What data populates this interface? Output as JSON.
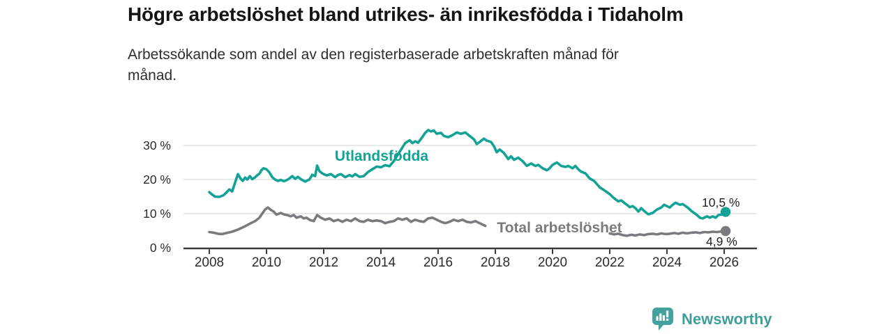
{
  "header": {
    "title": "Högre arbetslöshet bland utrikes- än inrikesfödda i Tidaholm",
    "subtitle_lines": [
      "Arbetssökande som andel av den registerbaserade arbetskraften månad för",
      "månad."
    ]
  },
  "footer": {
    "brand_name": "Newsworthy",
    "brand_color": "#3f9e9a",
    "logo_icon": "bar-chart-speech-bubble"
  },
  "chart_data": {
    "type": "line",
    "x_unit": "year (monthly series)",
    "grid": "horizontal",
    "xlim": [
      2007.1,
      2027.1
    ],
    "ylim": [
      0,
      36
    ],
    "x_ticks": {
      "values": [
        2008,
        2010,
        2012,
        2014,
        2016,
        2018,
        2020,
        2022,
        2024,
        2026
      ],
      "labels": [
        "2008",
        "2010",
        "2012",
        "2014",
        "2016",
        "2018",
        "2020",
        "2022",
        "2024",
        "2026"
      ]
    },
    "y_ticks": {
      "values": [
        0,
        10,
        20,
        30
      ],
      "labels": [
        "0 %",
        "10 %",
        "20 %",
        "30 %"
      ]
    },
    "series": [
      {
        "name": "Utlandsfödda",
        "color": "#12a296",
        "end_label": "10,5 %",
        "end_value": 10.5,
        "points": [
          [
            2008.0,
            16.3
          ],
          [
            2008.1,
            15.6
          ],
          [
            2008.2,
            15.0
          ],
          [
            2008.35,
            14.9
          ],
          [
            2008.5,
            15.4
          ],
          [
            2008.6,
            16.2
          ],
          [
            2008.7,
            17.1
          ],
          [
            2008.8,
            16.5
          ],
          [
            2009.0,
            21.6
          ],
          [
            2009.1,
            20.2
          ],
          [
            2009.17,
            19.6
          ],
          [
            2009.25,
            20.6
          ],
          [
            2009.33,
            20.0
          ],
          [
            2009.42,
            21.0
          ],
          [
            2009.5,
            20.1
          ],
          [
            2009.58,
            20.5
          ],
          [
            2009.67,
            21.2
          ],
          [
            2009.75,
            21.7
          ],
          [
            2009.83,
            22.8
          ],
          [
            2009.9,
            23.3
          ],
          [
            2010.0,
            23.0
          ],
          [
            2010.1,
            22.1
          ],
          [
            2010.2,
            20.7
          ],
          [
            2010.3,
            20.0
          ],
          [
            2010.4,
            19.6
          ],
          [
            2010.5,
            19.9
          ],
          [
            2010.6,
            19.5
          ],
          [
            2010.7,
            19.8
          ],
          [
            2010.8,
            20.3
          ],
          [
            2010.9,
            21.0
          ],
          [
            2011.0,
            20.2
          ],
          [
            2011.1,
            20.8
          ],
          [
            2011.2,
            20.1
          ],
          [
            2011.35,
            19.4
          ],
          [
            2011.5,
            20.0
          ],
          [
            2011.6,
            21.4
          ],
          [
            2011.7,
            21.0
          ],
          [
            2011.77,
            24.1
          ],
          [
            2011.85,
            22.5
          ],
          [
            2011.95,
            21.8
          ],
          [
            2012.1,
            21.2
          ],
          [
            2012.25,
            21.6
          ],
          [
            2012.4,
            20.7
          ],
          [
            2012.5,
            21.3
          ],
          [
            2012.6,
            21.6
          ],
          [
            2012.75,
            20.7
          ],
          [
            2012.9,
            21.3
          ],
          [
            2013.0,
            20.9
          ],
          [
            2013.1,
            21.6
          ],
          [
            2013.25,
            20.8
          ],
          [
            2013.4,
            21.0
          ],
          [
            2013.55,
            22.2
          ],
          [
            2013.7,
            23.0
          ],
          [
            2013.85,
            23.8
          ],
          [
            2014.0,
            23.6
          ],
          [
            2014.15,
            24.2
          ],
          [
            2014.3,
            23.9
          ],
          [
            2014.45,
            25.4
          ],
          [
            2014.6,
            27.4
          ],
          [
            2014.75,
            29.4
          ],
          [
            2014.85,
            30.7
          ],
          [
            2015.0,
            31.5
          ],
          [
            2015.1,
            30.7
          ],
          [
            2015.2,
            31.2
          ],
          [
            2015.3,
            30.8
          ],
          [
            2015.45,
            32.5
          ],
          [
            2015.55,
            33.7
          ],
          [
            2015.65,
            34.5
          ],
          [
            2015.75,
            34.1
          ],
          [
            2015.85,
            34.4
          ],
          [
            2015.95,
            33.4
          ],
          [
            2016.1,
            33.7
          ],
          [
            2016.2,
            32.8
          ],
          [
            2016.35,
            32.4
          ],
          [
            2016.5,
            33.0
          ],
          [
            2016.65,
            33.8
          ],
          [
            2016.8,
            33.4
          ],
          [
            2016.95,
            33.8
          ],
          [
            2017.1,
            32.8
          ],
          [
            2017.25,
            31.8
          ],
          [
            2017.35,
            30.4
          ],
          [
            2017.45,
            31.0
          ],
          [
            2017.6,
            32.0
          ],
          [
            2017.7,
            31.4
          ],
          [
            2017.85,
            31.0
          ],
          [
            2017.95,
            29.8
          ],
          [
            2018.05,
            28.0
          ],
          [
            2018.15,
            28.8
          ],
          [
            2018.3,
            27.8
          ],
          [
            2018.45,
            26.0
          ],
          [
            2018.55,
            26.8
          ],
          [
            2018.65,
            25.8
          ],
          [
            2018.8,
            26.4
          ],
          [
            2018.95,
            25.4
          ],
          [
            2019.1,
            24.0
          ],
          [
            2019.25,
            24.7
          ],
          [
            2019.4,
            24.0
          ],
          [
            2019.5,
            24.3
          ],
          [
            2019.65,
            23.3
          ],
          [
            2019.8,
            22.7
          ],
          [
            2019.9,
            23.3
          ],
          [
            2020.0,
            24.3
          ],
          [
            2020.15,
            25.0
          ],
          [
            2020.3,
            24.0
          ],
          [
            2020.45,
            23.7
          ],
          [
            2020.55,
            24.0
          ],
          [
            2020.7,
            23.3
          ],
          [
            2020.8,
            24.0
          ],
          [
            2020.9,
            23.0
          ],
          [
            2021.0,
            22.3
          ],
          [
            2021.15,
            21.8
          ],
          [
            2021.3,
            20.3
          ],
          [
            2021.45,
            19.6
          ],
          [
            2021.55,
            18.7
          ],
          [
            2021.65,
            17.7
          ],
          [
            2021.8,
            16.9
          ],
          [
            2021.9,
            16.3
          ],
          [
            2022.0,
            15.7
          ],
          [
            2022.1,
            14.9
          ],
          [
            2022.2,
            14.2
          ],
          [
            2022.3,
            13.6
          ],
          [
            2022.4,
            13.9
          ],
          [
            2022.5,
            13.2
          ],
          [
            2022.6,
            12.6
          ],
          [
            2022.7,
            11.9
          ],
          [
            2022.8,
            12.2
          ],
          [
            2022.9,
            11.6
          ],
          [
            2023.0,
            10.6
          ],
          [
            2023.1,
            11.6
          ],
          [
            2023.2,
            10.8
          ],
          [
            2023.35,
            9.8
          ],
          [
            2023.5,
            10.2
          ],
          [
            2023.65,
            11.2
          ],
          [
            2023.8,
            11.8
          ],
          [
            2023.9,
            12.6
          ],
          [
            2024.0,
            12.2
          ],
          [
            2024.1,
            11.8
          ],
          [
            2024.2,
            12.6
          ],
          [
            2024.3,
            13.2
          ],
          [
            2024.45,
            12.6
          ],
          [
            2024.55,
            12.8
          ],
          [
            2024.65,
            12.2
          ],
          [
            2024.75,
            11.6
          ],
          [
            2024.85,
            10.8
          ],
          [
            2024.95,
            10.2
          ],
          [
            2025.05,
            9.6
          ],
          [
            2025.15,
            8.8
          ],
          [
            2025.25,
            8.6
          ],
          [
            2025.4,
            9.2
          ],
          [
            2025.5,
            8.8
          ],
          [
            2025.6,
            9.2
          ],
          [
            2025.7,
            8.8
          ],
          [
            2025.8,
            9.6
          ],
          [
            2025.95,
            9.8
          ],
          [
            2026.05,
            10.5
          ]
        ]
      },
      {
        "name": "Total arbetslöshet",
        "color": "#7b7b7f",
        "end_label": "4,9 %",
        "end_value": 4.9,
        "points": [
          [
            2008.0,
            4.6
          ],
          [
            2008.15,
            4.4
          ],
          [
            2008.3,
            4.1
          ],
          [
            2008.45,
            4.0
          ],
          [
            2008.6,
            4.3
          ],
          [
            2008.75,
            4.6
          ],
          [
            2008.9,
            5.0
          ],
          [
            2009.0,
            5.3
          ],
          [
            2009.15,
            5.9
          ],
          [
            2009.3,
            6.5
          ],
          [
            2009.45,
            7.2
          ],
          [
            2009.6,
            7.8
          ],
          [
            2009.75,
            8.8
          ],
          [
            2009.85,
            10.0
          ],
          [
            2009.95,
            11.2
          ],
          [
            2010.05,
            11.8
          ],
          [
            2010.15,
            11.1
          ],
          [
            2010.25,
            10.6
          ],
          [
            2010.35,
            9.7
          ],
          [
            2010.5,
            10.2
          ],
          [
            2010.6,
            9.8
          ],
          [
            2010.75,
            9.5
          ],
          [
            2010.85,
            9.2
          ],
          [
            2010.95,
            9.6
          ],
          [
            2011.05,
            8.8
          ],
          [
            2011.2,
            9.2
          ],
          [
            2011.3,
            8.6
          ],
          [
            2011.4,
            8.8
          ],
          [
            2011.5,
            8.2
          ],
          [
            2011.65,
            7.8
          ],
          [
            2011.77,
            9.6
          ],
          [
            2011.9,
            8.8
          ],
          [
            2012.05,
            8.2
          ],
          [
            2012.2,
            8.6
          ],
          [
            2012.35,
            7.8
          ],
          [
            2012.5,
            8.2
          ],
          [
            2012.65,
            7.6
          ],
          [
            2012.8,
            8.2
          ],
          [
            2012.95,
            7.8
          ],
          [
            2013.1,
            8.6
          ],
          [
            2013.25,
            7.8
          ],
          [
            2013.4,
            7.6
          ],
          [
            2013.55,
            8.2
          ],
          [
            2013.7,
            7.8
          ],
          [
            2013.85,
            8.0
          ],
          [
            2014.0,
            7.8
          ],
          [
            2014.15,
            7.2
          ],
          [
            2014.3,
            7.6
          ],
          [
            2014.45,
            7.8
          ],
          [
            2014.6,
            8.6
          ],
          [
            2014.75,
            8.2
          ],
          [
            2014.9,
            8.6
          ],
          [
            2015.05,
            7.6
          ],
          [
            2015.2,
            8.2
          ],
          [
            2015.35,
            7.8
          ],
          [
            2015.5,
            7.6
          ],
          [
            2015.65,
            8.6
          ],
          [
            2015.8,
            8.8
          ],
          [
            2015.95,
            8.2
          ],
          [
            2016.1,
            7.6
          ],
          [
            2016.25,
            7.2
          ],
          [
            2016.4,
            7.6
          ],
          [
            2016.55,
            8.2
          ],
          [
            2016.7,
            7.8
          ],
          [
            2016.85,
            8.2
          ],
          [
            2017.0,
            7.6
          ],
          [
            2017.15,
            7.4
          ],
          [
            2017.3,
            7.8
          ],
          [
            2017.45,
            7.2
          ],
          [
            2017.55,
            6.8
          ],
          [
            2017.65,
            6.4
          ],
          [
            2017.8,
            null
          ],
          [
            2022.0,
            4.2
          ],
          [
            2022.15,
            3.9
          ],
          [
            2022.3,
            4.1
          ],
          [
            2022.45,
            3.7
          ],
          [
            2022.6,
            3.5
          ],
          [
            2022.75,
            3.8
          ],
          [
            2022.9,
            3.6
          ],
          [
            2023.05,
            3.9
          ],
          [
            2023.2,
            3.7
          ],
          [
            2023.35,
            4.0
          ],
          [
            2023.5,
            4.1
          ],
          [
            2023.65,
            3.9
          ],
          [
            2023.8,
            4.2
          ],
          [
            2023.95,
            4.0
          ],
          [
            2024.1,
            4.1
          ],
          [
            2024.25,
            4.3
          ],
          [
            2024.4,
            4.1
          ],
          [
            2024.55,
            4.4
          ],
          [
            2024.7,
            4.2
          ],
          [
            2024.85,
            4.4
          ],
          [
            2025.0,
            4.5
          ],
          [
            2025.15,
            4.3
          ],
          [
            2025.3,
            4.6
          ],
          [
            2025.45,
            4.5
          ],
          [
            2025.6,
            4.7
          ],
          [
            2025.75,
            4.6
          ],
          [
            2025.9,
            4.8
          ],
          [
            2026.05,
            4.9
          ]
        ]
      }
    ]
  }
}
